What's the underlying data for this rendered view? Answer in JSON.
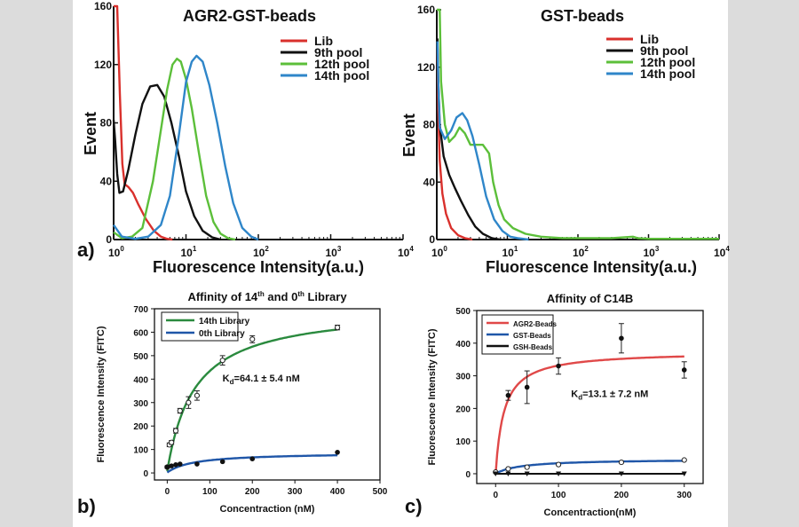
{
  "colors": {
    "red": "#d9302c",
    "black": "#111111",
    "green": "#5cbf3a",
    "blue": "#2f86c9",
    "fit_green": "#2a8a3e",
    "fit_blue": "#1f56a8",
    "fit_red": "#e04848"
  },
  "panel_labels": {
    "a": "a)",
    "b": "b)",
    "c": "c)"
  },
  "chart_data": [
    {
      "id": "a1",
      "type": "line",
      "title": "AGR2-GST-beads",
      "xlabel": "Fluorescence Intensity(a.u.)",
      "ylabel": "Event",
      "xscale": "log",
      "xlim": [
        1,
        10000
      ],
      "ylim": [
        0,
        160
      ],
      "x_ticks": [
        {
          "value": 1,
          "base": "10",
          "exp": "0"
        },
        {
          "value": 10,
          "base": "10",
          "exp": "1"
        },
        {
          "value": 100,
          "base": "10",
          "exp": "2"
        },
        {
          "value": 1000,
          "base": "10",
          "exp": "3"
        },
        {
          "value": 10000,
          "base": "10",
          "exp": "4"
        }
      ],
      "y_ticks": [
        {
          "value": 0,
          "label": "0"
        },
        {
          "value": 40,
          "label": "40"
        },
        {
          "value": 80,
          "label": "80"
        },
        {
          "value": 120,
          "label": "120"
        },
        {
          "value": 160,
          "label": "160"
        }
      ],
      "legend": [
        {
          "label": "Lib",
          "color": "#d9302c"
        },
        {
          "label": "9th pool",
          "color": "#111111"
        },
        {
          "label": "12th pool",
          "color": "#5cbf3a"
        },
        {
          "label": "14th pool",
          "color": "#2f86c9"
        }
      ],
      "series": [
        {
          "name": "Lib",
          "color": "#d9302c",
          "x": [
            1,
            1,
            1.12,
            1.22,
            1.32,
            1.42,
            1.6,
            1.85,
            2.2,
            2.8,
            3.6,
            4.5,
            5.5,
            6.5
          ],
          "y": [
            160,
            160,
            160,
            100,
            52,
            38,
            36,
            32,
            24,
            14,
            6,
            2,
            0.5,
            0
          ]
        },
        {
          "name": "9th pool",
          "color": "#111111",
          "x": [
            1,
            1.05,
            1.12,
            1.2,
            1.35,
            1.6,
            2,
            2.5,
            3.2,
            4,
            5,
            6.3,
            8,
            10,
            13,
            17,
            23,
            30
          ],
          "y": [
            82,
            68,
            45,
            32,
            33,
            48,
            72,
            93,
            105,
            106,
            98,
            80,
            57,
            33,
            16,
            6,
            1.5,
            0
          ]
        },
        {
          "name": "12th pool",
          "color": "#5cbf3a",
          "x": [
            1,
            1.3,
            1.8,
            2.5,
            3.5,
            4.5,
            5.5,
            6.5,
            7.5,
            8.5,
            10,
            12,
            15,
            19,
            24,
            30,
            38,
            48
          ],
          "y": [
            5,
            1,
            2,
            8,
            40,
            75,
            103,
            120,
            124,
            122,
            110,
            90,
            60,
            30,
            12,
            4,
            1,
            0
          ]
        },
        {
          "name": "14th pool",
          "color": "#2f86c9",
          "x": [
            1,
            1.3,
            2,
            3,
            4.5,
            6,
            8,
            10,
            12,
            14,
            17,
            21,
            27,
            35,
            45,
            60,
            80,
            100
          ],
          "y": [
            10,
            2,
            0.5,
            2,
            10,
            30,
            72,
            108,
            122,
            126,
            122,
            106,
            80,
            50,
            25,
            8,
            2,
            0
          ]
        }
      ]
    },
    {
      "id": "a2",
      "type": "line",
      "title": "GST-beads",
      "xlabel": "Fluorescence Intensity(a.u.)",
      "ylabel": "Event",
      "xscale": "log",
      "xlim": [
        1,
        10000
      ],
      "ylim": [
        0,
        160
      ],
      "x_ticks": [
        {
          "value": 1,
          "base": "10",
          "exp": "0"
        },
        {
          "value": 10,
          "base": "10",
          "exp": "1"
        },
        {
          "value": 100,
          "base": "10",
          "exp": "2"
        },
        {
          "value": 1000,
          "base": "10",
          "exp": "3"
        },
        {
          "value": 10000,
          "base": "10",
          "exp": "4"
        }
      ],
      "y_ticks": [
        {
          "value": 0,
          "label": "0"
        },
        {
          "value": 40,
          "label": "40"
        },
        {
          "value": 80,
          "label": "80"
        },
        {
          "value": 120,
          "label": "120"
        },
        {
          "value": 160,
          "label": "160"
        }
      ],
      "legend": [
        {
          "label": "Lib",
          "color": "#d9302c"
        },
        {
          "label": "9th pool",
          "color": "#111111"
        },
        {
          "label": "12th pool",
          "color": "#5cbf3a"
        },
        {
          "label": "14th pool",
          "color": "#2f86c9"
        }
      ],
      "series": [
        {
          "name": "Lib",
          "color": "#d9302c",
          "x": [
            1.02,
            1.05,
            1.1,
            1.2,
            1.35,
            1.6,
            2,
            2.5,
            3.2
          ],
          "y": [
            138,
            90,
            55,
            32,
            18,
            8,
            3,
            1,
            0
          ]
        },
        {
          "name": "9th pool",
          "color": "#111111",
          "x": [
            1.02,
            1.05,
            1.1,
            1.25,
            1.5,
            1.8,
            2.2,
            2.8,
            3.5,
            4.5,
            6,
            8
          ],
          "y": [
            140,
            110,
            80,
            58,
            45,
            36,
            27,
            17,
            9,
            4,
            1,
            0
          ]
        },
        {
          "name": "12th pool",
          "color": "#5cbf3a",
          "x": [
            1,
            1.1,
            1.15,
            1.3,
            1.5,
            1.8,
            2.1,
            2.5,
            3,
            3.5,
            4.5,
            5.5,
            6.3,
            7.5,
            9,
            12,
            18,
            30,
            60,
            120,
            300,
            600,
            700,
            1000,
            10000
          ],
          "y": [
            160,
            160,
            110,
            80,
            68,
            72,
            78,
            74,
            66,
            66,
            66,
            60,
            40,
            24,
            14,
            8,
            4,
            2,
            1,
            1,
            1,
            2,
            1,
            0.5,
            0.5
          ]
        },
        {
          "name": "14th pool",
          "color": "#2f86c9",
          "x": [
            1.02,
            1.05,
            1.1,
            1.3,
            1.6,
            1.9,
            2.3,
            2.7,
            3.2,
            4,
            5,
            6.5,
            8.5,
            11,
            14,
            20
          ],
          "y": [
            138,
            110,
            78,
            70,
            76,
            85,
            88,
            83,
            72,
            52,
            30,
            14,
            6,
            2,
            1,
            0
          ]
        }
      ]
    },
    {
      "id": "b",
      "type": "scatter",
      "title": "Affinity of 14th and 0th Library",
      "title_parts": [
        "Affinity of 14",
        "th",
        " and 0",
        "th",
        " Library"
      ],
      "xlabel": "Concentraction (nM)",
      "ylabel": "Fluorescence Intensity (FITC)",
      "xlim": [
        -30,
        500
      ],
      "ylim": [
        -30,
        700
      ],
      "x_ticks": [
        0,
        100,
        200,
        300,
        400,
        500
      ],
      "y_ticks": [
        0,
        100,
        200,
        300,
        400,
        500,
        600,
        700
      ],
      "annotation": {
        "text_pre": "K",
        "text_sub": "d",
        "text_post": "=64.1 ± 5.4 nM",
        "x": 130,
        "y": 390
      },
      "legend": [
        {
          "label": "14th Library",
          "color": "#2a8a3e"
        },
        {
          "label": "0th Library",
          "color": "#1f56a8"
        }
      ],
      "series": [
        {
          "name": "14th Library",
          "marker": "open-circle",
          "fit_color": "#2a8a3e",
          "bmax": 700,
          "kd": 64.1,
          "x": [
            0,
            5,
            10,
            20,
            30,
            50,
            70,
            130,
            200,
            400
          ],
          "y": [
            25,
            120,
            130,
            180,
            265,
            300,
            330,
            480,
            570,
            620
          ],
          "err": [
            5,
            8,
            8,
            10,
            10,
            25,
            20,
            20,
            15,
            10
          ]
        },
        {
          "name": "0th Library",
          "marker": "filled-circle",
          "fit_color": "#1f56a8",
          "bmax": 85,
          "kd": 64.1,
          "x": [
            0,
            10,
            20,
            30,
            70,
            130,
            200,
            400
          ],
          "y": [
            25,
            30,
            35,
            38,
            38,
            48,
            60,
            88
          ],
          "err": [
            0,
            0,
            0,
            0,
            0,
            0,
            0,
            0
          ]
        }
      ]
    },
    {
      "id": "c",
      "type": "scatter",
      "title": "Affinity of C14B",
      "xlabel": "Concentraction(nM)",
      "ylabel": "Fluorescence Intensity (FITC)",
      "xlim": [
        -30,
        330
      ],
      "ylim": [
        -30,
        500
      ],
      "x_ticks": [
        0,
        100,
        200,
        300
      ],
      "y_ticks": [
        0,
        100,
        200,
        300,
        400,
        500
      ],
      "annotation": {
        "text_pre": "K",
        "text_sub": "d",
        "text_post": "=13.1 ± 7.2 nM",
        "x": 120,
        "y": 235
      },
      "legend": [
        {
          "label": "AGR2-Beads",
          "color": "#e04848"
        },
        {
          "label": "GST-Beads",
          "color": "#1f56a8"
        },
        {
          "label": "GSH-Beads",
          "color": "#111111"
        }
      ],
      "series": [
        {
          "name": "AGR2-Beads",
          "marker": "filled-circle",
          "fit_color": "#e04848",
          "bmax": 375,
          "kd": 13.1,
          "x": [
            0,
            20,
            50,
            100,
            200,
            300
          ],
          "y": [
            5,
            240,
            265,
            330,
            415,
            318
          ],
          "err": [
            0,
            15,
            50,
            25,
            45,
            25
          ]
        },
        {
          "name": "GST-Beads",
          "marker": "open-circle",
          "fit_color": "#1f56a8",
          "bmax": 45,
          "kd": 40,
          "x": [
            0,
            20,
            50,
            100,
            200,
            300
          ],
          "y": [
            5,
            15,
            20,
            28,
            35,
            42
          ],
          "err": [
            0,
            0,
            0,
            0,
            0,
            0
          ]
        },
        {
          "name": "GSH-Beads",
          "marker": "triangle-down",
          "fit_color": "#111111",
          "bmax": 0,
          "kd": 1,
          "x": [
            0,
            20,
            50,
            100,
            200,
            300
          ],
          "y": [
            0,
            0,
            0,
            0,
            0,
            0
          ],
          "err": [
            0,
            0,
            0,
            0,
            0,
            0
          ]
        }
      ]
    }
  ]
}
